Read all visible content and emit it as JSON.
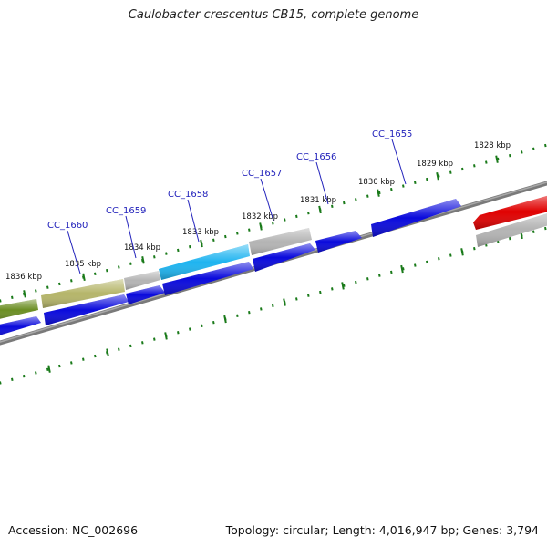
{
  "title": "Caulobacter crescentus CB15, complete genome",
  "accession_label": "Accession: NC_002696",
  "summary_label": "Topology: circular; Length: 4,016,947 bp; Genes: 3,794",
  "colors": {
    "tick": "#1a7a1a",
    "backbone": "#7a7a7a",
    "gene_label": "#2222bb",
    "gene_blue": "#0a0adc",
    "gene_olive": "#6b8e23",
    "gene_khaki": "#b5b569",
    "gene_cyan": "#1eb4f0",
    "gene_gray": "#b4b4b4",
    "gene_red": "#e00000"
  },
  "scale_labels": [
    "1836 kbp",
    "1835 kbp",
    "1834 kbp",
    "1833 kbp",
    "1832 kbp",
    "1831 kbp",
    "1830 kbp",
    "1829 kbp",
    "1828 kbp"
  ],
  "gene_labels": [
    "CC_1660",
    "CC_1659",
    "CC_1658",
    "CC_1657",
    "CC_1656",
    "CC_1655"
  ]
}
